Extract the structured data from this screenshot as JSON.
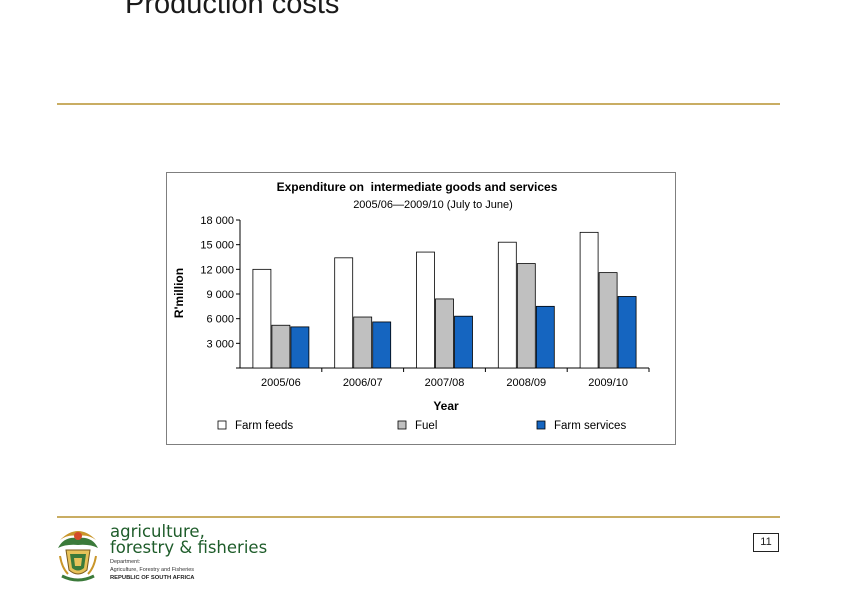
{
  "slide": {
    "title": "Production costs",
    "page_number": "11"
  },
  "logo": {
    "line1": "agriculture,",
    "line2": "forestry & fisheries",
    "small1": "Department:",
    "small2": "Agriculture, Forestry and Fisheries",
    "small3": "REPUBLIC OF SOUTH AFRICA"
  },
  "colors": {
    "rule": "#c9ad63",
    "logo_green": "#1e5c2a",
    "farm_feeds": "#ffffff",
    "fuel": "#c0c0c0",
    "farm_services": "#1565c0"
  },
  "chart_data": {
    "type": "bar",
    "title": "Expenditure on  intermediate goods and services",
    "subtitle": "2005/06—2009/10 (July to June)",
    "xlabel": "Year",
    "ylabel": "R'million",
    "ylim": [
      0,
      18000
    ],
    "yticks": [
      3000,
      6000,
      9000,
      12000,
      15000,
      18000
    ],
    "ytick_labels": [
      "3 000",
      "6 000",
      "9 000",
      "12 000",
      "15 000",
      "18 000"
    ],
    "categories": [
      "2005/06",
      "2006/07",
      "2007/08",
      "2008/09",
      "2009/10"
    ],
    "series": [
      {
        "name": "Farm feeds",
        "color": "#ffffff",
        "values": [
          12000,
          13400,
          14100,
          15300,
          16500
        ]
      },
      {
        "name": "Fuel",
        "color": "#c0c0c0",
        "values": [
          5200,
          6200,
          8400,
          12700,
          11600
        ]
      },
      {
        "name": "Farm services",
        "color": "#1565c0",
        "values": [
          5000,
          5600,
          6300,
          7500,
          8700
        ]
      }
    ],
    "legend_position": "bottom",
    "grid": false
  }
}
